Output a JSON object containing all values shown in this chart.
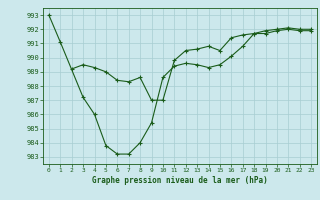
{
  "title": "Graphe pression niveau de la mer (hPa)",
  "bg_color": "#cce8ec",
  "grid_color": "#a8cdd2",
  "line_color": "#1a5c1a",
  "xlim": [
    -0.5,
    23.5
  ],
  "ylim": [
    982.5,
    993.5
  ],
  "yticks": [
    983,
    984,
    985,
    986,
    987,
    988,
    989,
    990,
    991,
    992,
    993
  ],
  "xticks": [
    0,
    1,
    2,
    3,
    4,
    5,
    6,
    7,
    8,
    9,
    10,
    11,
    12,
    13,
    14,
    15,
    16,
    17,
    18,
    19,
    20,
    21,
    22,
    23
  ],
  "curve1_x": [
    0,
    1,
    3,
    4,
    5,
    6,
    7,
    8,
    9,
    10,
    11,
    12,
    13,
    14,
    15,
    16,
    17,
    18,
    19,
    20,
    21,
    22,
    23
  ],
  "curve1_y": [
    993.0,
    991.1,
    987.2,
    986.0,
    983.8,
    983.2,
    983.2,
    984.0,
    985.4,
    988.6,
    989.4,
    989.6,
    989.5,
    989.3,
    989.5,
    990.1,
    990.8,
    991.7,
    991.9,
    992.0,
    992.1,
    992.0,
    992.0
  ],
  "curve2_x": [
    2,
    3,
    4,
    5,
    6,
    7,
    8,
    9,
    10,
    11,
    12,
    13,
    14,
    15,
    16,
    17,
    18,
    19,
    20,
    21,
    22,
    23
  ],
  "curve2_y": [
    989.2,
    989.5,
    989.3,
    989.0,
    988.4,
    988.3,
    988.6,
    987.0,
    987.0,
    989.8,
    990.5,
    990.6,
    990.8,
    990.5,
    991.4,
    991.6,
    991.7,
    991.7,
    991.9,
    992.0,
    991.9,
    991.9
  ]
}
